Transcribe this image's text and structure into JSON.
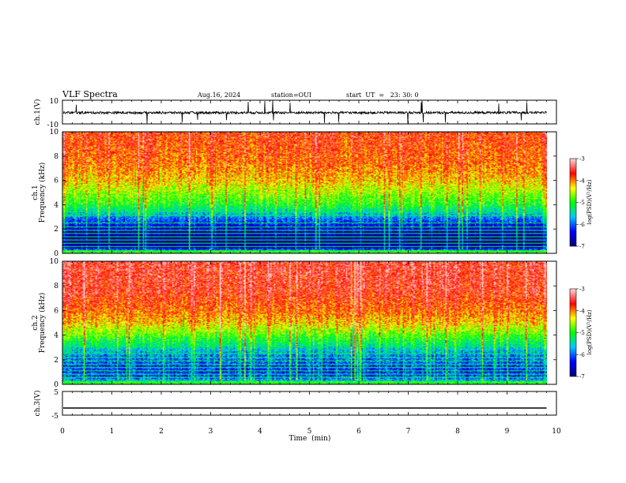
{
  "header": {
    "title": "VLF Spectra",
    "date": "Aug.16, 2024",
    "station": "station=OUI",
    "start": "start  UT  =   23: 30: 0"
  },
  "chart_data": [
    {
      "type": "line",
      "name": "ch.1 waveform",
      "ylabel": "ch.1(V)",
      "ylim": [
        -10,
        10
      ],
      "yticks": [
        "10",
        "-10"
      ],
      "xlim": [
        0,
        10
      ],
      "baseline": -0.5,
      "noise_amplitude": 2,
      "spike_max": 10,
      "data_end_min": 9.8
    },
    {
      "type": "heatmap",
      "name": "ch.1 spectrogram",
      "ylabel_top": "ch.1",
      "ylabel": "Frequency (kHz)",
      "ylim": [
        0,
        10
      ],
      "yticks": [
        "0",
        "2",
        "4",
        "6",
        "8",
        "10"
      ],
      "xlim": [
        0,
        10
      ],
      "data_end_min": 9.8,
      "colorbar": {
        "label": "log(PSD)(V²/Hz)",
        "range": [
          -7,
          -3
        ],
        "ticks": [
          "-3",
          "-4",
          "-5",
          "-6",
          "-7"
        ],
        "colors": [
          "#00007a",
          "#0000ff",
          "#00c8ff",
          "#00ff00",
          "#ffff00",
          "#ff0000",
          "#ffd7d7"
        ]
      },
      "profile": [
        {
          "f": 0.1,
          "v": -5.5
        },
        {
          "f": 0.5,
          "v": -6.8
        },
        {
          "f": 1.0,
          "v": -6.9
        },
        {
          "f": 1.6,
          "v": -6.7
        },
        {
          "f": 2.4,
          "v": -6.3
        },
        {
          "f": 3.2,
          "v": -5.6
        },
        {
          "f": 4.0,
          "v": -5.0
        },
        {
          "f": 5.0,
          "v": -4.6
        },
        {
          "f": 6.0,
          "v": -4.2
        },
        {
          "f": 7.5,
          "v": -3.9
        },
        {
          "f": 10.0,
          "v": -3.7
        }
      ]
    },
    {
      "type": "heatmap",
      "name": "ch.2 spectrogram",
      "ylabel_top": "ch.2",
      "ylabel": "Frequency (kHz)",
      "ylim": [
        0,
        10
      ],
      "yticks": [
        "0",
        "2",
        "4",
        "6",
        "8",
        "10"
      ],
      "xlim": [
        0,
        10
      ],
      "data_end_min": 9.8,
      "colorbar": {
        "label": "log(PSD)(V²/Hz)",
        "range": [
          -7,
          -3
        ],
        "ticks": [
          "-3",
          "-4",
          "-5",
          "-6",
          "-7"
        ],
        "colors": [
          "#00007a",
          "#0000ff",
          "#00c8ff",
          "#00ff00",
          "#ffff00",
          "#ff0000",
          "#ffd7d7"
        ]
      },
      "profile": [
        {
          "f": 0.1,
          "v": -5.3
        },
        {
          "f": 0.5,
          "v": -6.0
        },
        {
          "f": 1.0,
          "v": -6.2
        },
        {
          "f": 1.6,
          "v": -6.1
        },
        {
          "f": 2.4,
          "v": -5.8
        },
        {
          "f": 3.2,
          "v": -5.3
        },
        {
          "f": 4.0,
          "v": -4.8
        },
        {
          "f": 5.0,
          "v": -4.2
        },
        {
          "f": 6.0,
          "v": -3.9
        },
        {
          "f": 7.5,
          "v": -3.6
        },
        {
          "f": 10.0,
          "v": -3.5
        }
      ]
    },
    {
      "type": "line",
      "name": "ch.3 waveform",
      "ylabel": "ch.3(V)",
      "ylim": [
        -5,
        5
      ],
      "yticks": [
        "5",
        "-5"
      ],
      "xlim": [
        0,
        10
      ],
      "baseline": -2,
      "data_end_min": 9.8
    }
  ],
  "xaxis": {
    "label": "Time  (min)",
    "ticks": [
      "0",
      "1",
      "2",
      "3",
      "4",
      "5",
      "6",
      "7",
      "8",
      "9",
      "10"
    ]
  }
}
